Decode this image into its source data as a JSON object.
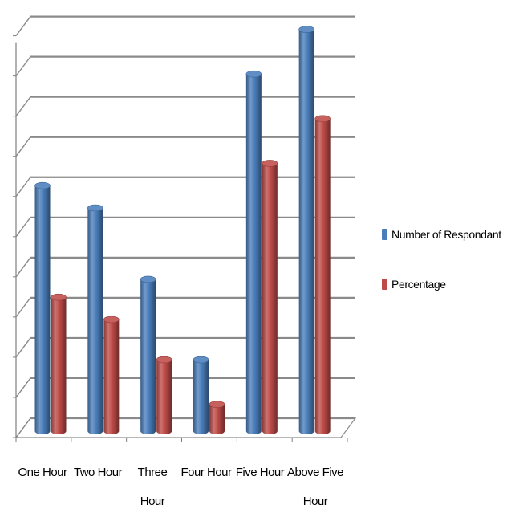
{
  "chart_data": {
    "type": "bar",
    "title": "",
    "xlabel": "",
    "ylabel": "",
    "categories": [
      "One Hour",
      "Two Hour",
      "Three Hour",
      "Four Hour",
      "Five Hour",
      "Above Five Hour"
    ],
    "series": [
      {
        "name": "Number of Respondant",
        "color": "#4a7ebb",
        "values": [
          55,
          50,
          34,
          16,
          80,
          90
        ]
      },
      {
        "name": "Percentage",
        "color": "#be4b48",
        "values": [
          30,
          25,
          16,
          6,
          60,
          70
        ]
      }
    ],
    "ylim": [
      0,
      90
    ],
    "y_gridline_count": 10,
    "grid": true,
    "y_tick_labels_shown": false,
    "legend_position": "right",
    "style": "3d-cylinder"
  }
}
